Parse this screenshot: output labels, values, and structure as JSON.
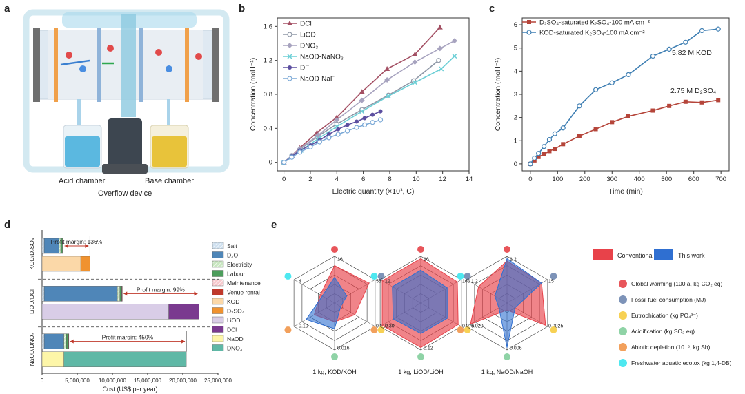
{
  "panel_labels": {
    "a": "a",
    "b": "b",
    "c": "c",
    "d": "d",
    "e": "e"
  },
  "panel_a": {
    "acid_label": "Acid chamber",
    "base_label": "Base chamber",
    "overflow_label": "Overflow device",
    "colors": {
      "acid_liquid": "#5bb8e0",
      "base_liquid": "#e8c33a",
      "membrane": "#f0a04a",
      "pipe": "#bfe3ef"
    }
  },
  "chart_data": [
    {
      "id": "b",
      "type": "line",
      "xlabel": "Electric quantity (×10³, C)",
      "ylabel": "Concentration (mol l⁻¹)",
      "xlim": [
        -0.5,
        14
      ],
      "ylim": [
        -0.1,
        1.7
      ],
      "xticks": [
        0,
        2,
        4,
        6,
        8,
        10,
        12,
        14
      ],
      "yticks": [
        0,
        0.4,
        0.8,
        1.2,
        1.6
      ],
      "ytick_labels": [
        "0",
        "0.4",
        "0.8",
        "1.2",
        "1.6"
      ],
      "legend_position": "top-left",
      "series": [
        {
          "name": "DCl",
          "color": "#a34f63",
          "marker": "triangle",
          "x": [
            0,
            0.6,
            1.2,
            2.5,
            4.0,
            5.9,
            7.8,
            9.9,
            11.8
          ],
          "y": [
            0,
            0.08,
            0.17,
            0.35,
            0.53,
            0.83,
            1.1,
            1.27,
            1.59
          ]
        },
        {
          "name": "LiOD",
          "color": "#8e97a6",
          "marker": "open-circle",
          "x": [
            0,
            0.6,
            1.2,
            2.5,
            4.0,
            5.9,
            7.9,
            9.8,
            11.7
          ],
          "y": [
            0,
            0.08,
            0.15,
            0.3,
            0.45,
            0.62,
            0.79,
            0.96,
            1.2
          ]
        },
        {
          "name": "DNO₃",
          "color": "#a7a3bf",
          "marker": "diamond",
          "x": [
            0,
            0.6,
            1.2,
            2.6,
            4.0,
            5.9,
            7.8,
            9.9,
            11.8,
            12.9
          ],
          "y": [
            0,
            0.08,
            0.16,
            0.32,
            0.5,
            0.73,
            0.97,
            1.18,
            1.34,
            1.43
          ]
        },
        {
          "name": "NaOD-NaNO₃",
          "color": "#6ccfd6",
          "marker": "x",
          "x": [
            0,
            0.6,
            1.3,
            2.6,
            4.0,
            5.9,
            7.9,
            9.9,
            11.9,
            12.9
          ],
          "y": [
            0,
            0.07,
            0.14,
            0.28,
            0.42,
            0.6,
            0.78,
            0.94,
            1.1,
            1.25
          ]
        },
        {
          "name": "DF",
          "color": "#5c4fa0",
          "marker": "filled-circle",
          "x": [
            0,
            0.6,
            1.2,
            2.0,
            2.7,
            3.4,
            4.1,
            4.8,
            5.5,
            6.1,
            6.7,
            7.3
          ],
          "y": [
            0,
            0.07,
            0.14,
            0.2,
            0.26,
            0.33,
            0.39,
            0.44,
            0.48,
            0.52,
            0.56,
            0.6
          ]
        },
        {
          "name": "NaOD-NaF",
          "color": "#7aa8d6",
          "marker": "open-circle",
          "x": [
            0,
            0.6,
            1.2,
            2.0,
            2.7,
            3.4,
            4.1,
            4.8,
            5.5,
            6.1,
            6.7,
            7.3
          ],
          "y": [
            0,
            0.06,
            0.12,
            0.18,
            0.24,
            0.29,
            0.33,
            0.37,
            0.41,
            0.44,
            0.47,
            0.5
          ]
        }
      ]
    },
    {
      "id": "c",
      "type": "line",
      "xlabel": "Time (min)",
      "ylabel": "Concentration (mol l⁻¹)",
      "xlim": [
        -30,
        730
      ],
      "ylim": [
        -0.3,
        6.3
      ],
      "xticks": [
        0,
        100,
        200,
        300,
        400,
        500,
        600,
        700
      ],
      "yticks": [
        0,
        1,
        2,
        3,
        4,
        5,
        6
      ],
      "legend_position": "top-left",
      "annotations": [
        "5.82 M KOD",
        "2.75 M D₂SO₄"
      ],
      "series": [
        {
          "name": "D₂SO₄-saturated K₂SO₄-100 mA cm⁻²",
          "color": "#b5453a",
          "marker": "square",
          "x": [
            0,
            15,
            30,
            50,
            70,
            90,
            120,
            180,
            240,
            300,
            360,
            450,
            510,
            570,
            630,
            690
          ],
          "y": [
            0,
            0.15,
            0.3,
            0.42,
            0.55,
            0.65,
            0.85,
            1.2,
            1.5,
            1.8,
            2.05,
            2.3,
            2.5,
            2.68,
            2.65,
            2.75
          ]
        },
        {
          "name": "KOD-saturated K₂SO₄-100 mA cm⁻²",
          "color": "#3f7fb3",
          "marker": "open-circle",
          "x": [
            0,
            15,
            30,
            50,
            70,
            90,
            120,
            180,
            240,
            300,
            360,
            450,
            510,
            570,
            630,
            690
          ],
          "y": [
            0,
            0.25,
            0.45,
            0.75,
            1.05,
            1.3,
            1.55,
            2.5,
            3.2,
            3.5,
            3.85,
            4.65,
            4.95,
            5.25,
            5.75,
            5.82
          ]
        }
      ]
    },
    {
      "id": "d",
      "type": "bar",
      "orientation": "horizontal",
      "stacked": true,
      "xlabel": "Cost (US$ per year)",
      "xlim": [
        0,
        25000000
      ],
      "xticks": [
        0,
        5000000,
        10000000,
        15000000,
        20000000,
        25000000
      ],
      "xtick_labels": [
        "0",
        "5,000,000",
        "10,000,000",
        "15,000,000",
        "20,000,000",
        "25,000,000"
      ],
      "groups": [
        {
          "label": "KOD/D₂SO₄",
          "profit_margin": "Profit margin: 136%",
          "cost_bar": {
            "Salt": 300000,
            "D₂O": 2100000,
            "Electricity": 250000,
            "Labour": 250000,
            "Maintenance": 50000,
            "Venue rental": 50000
          },
          "revenue_bar": {
            "KOD": 5500000,
            "D₂SO₄": 1300000
          }
        },
        {
          "label": "LiOD/DCl",
          "profit_margin": "Profit margin: 99%",
          "cost_bar": {
            "Salt": 300000,
            "D₂O": 10400000,
            "Electricity": 350000,
            "Labour": 250000,
            "Maintenance": 50000,
            "Venue rental": 50000
          },
          "revenue_bar": {
            "LiOD": 18000000,
            "DCl": 4300000
          }
        },
        {
          "label": "NaOD/DNO₃",
          "profit_margin": "Profit margin: 450%",
          "cost_bar": {
            "Salt": 300000,
            "D₂O": 2800000,
            "Electricity": 350000,
            "Labour": 250000,
            "Maintenance": 50000,
            "Venue rental": 50000
          },
          "revenue_bar": {
            "NaOD": 3100000,
            "DNO₃": 17400000
          }
        }
      ],
      "legend": [
        {
          "name": "Salt",
          "color": "#cfe0ef",
          "hatch": true
        },
        {
          "name": "D₂O",
          "color": "#4f86b8",
          "hatch": false
        },
        {
          "name": "Electricity",
          "color": "#c8e6c0",
          "hatch": true
        },
        {
          "name": "Labour",
          "color": "#4c9e5c",
          "hatch": false
        },
        {
          "name": "Maintenance",
          "color": "#f7c9cd",
          "hatch": true
        },
        {
          "name": "Venue rental",
          "color": "#c0392b",
          "hatch": false
        },
        {
          "name": "KOD",
          "color": "#fbd8a8",
          "hatch": false
        },
        {
          "name": "D₂SO₄",
          "color": "#f0922f",
          "hatch": false
        },
        {
          "name": "LiOD",
          "color": "#d9cde7",
          "hatch": false
        },
        {
          "name": "DCl",
          "color": "#7a3a8f",
          "hatch": false
        },
        {
          "name": "NaOD",
          "color": "#fdf6a8",
          "hatch": false
        },
        {
          "name": "DNO₃",
          "color": "#5fb8a6",
          "hatch": false
        }
      ]
    },
    {
      "id": "e",
      "type": "radar",
      "legend_series": [
        {
          "name": "Conventional",
          "color": "#e8424a"
        },
        {
          "name": "This work",
          "color": "#2f6fd1"
        }
      ],
      "categories": [
        {
          "name": "Global warming (100 a, kg CO₂ eq)",
          "color": "#e8555a"
        },
        {
          "name": "Fossil fuel consumption (MJ)",
          "color": "#7d93b8"
        },
        {
          "name": "Eutrophication (kg PO₄³⁻)",
          "color": "#f7d154"
        },
        {
          "name": "Acidification (kg SO₂ eq)",
          "color": "#8fd3a6"
        },
        {
          "name": "Abiotic depletion (10⁻⁵, kg Sb)",
          "color": "#f2a05c"
        },
        {
          "name": "Freshwater aquatic ecotox (kg 1,4-DB)",
          "color": "#4ee8f0"
        }
      ],
      "radars": [
        {
          "label": "1 kg, KOD/KOH",
          "max_labels": [
            "16",
            "55",
            "0.012",
            "0.016",
            "0.10",
            "4"
          ],
          "conventional": [
            0.8,
            0.85,
            0.5,
            0.4,
            0.5,
            0.35
          ],
          "this_work": [
            0.55,
            0.3,
            0.15,
            0.55,
            0.7,
            0.3
          ]
        },
        {
          "label": "1 kg, LiOD/LiOH",
          "max_labels": [
            "16",
            "160",
            "0.075",
            "0.12",
            "0.30",
            "12"
          ],
          "conventional": [
            0.95,
            0.9,
            0.92,
            0.95,
            0.95,
            0.95
          ],
          "this_work": [
            0.7,
            0.65,
            0.65,
            0.65,
            0.68,
            0.7
          ]
        },
        {
          "label": "1 kg, NaOD/NaOH",
          "max_labels": [
            "1.2",
            "15",
            "0.0025",
            "0.006",
            "0.020",
            "1.2"
          ],
          "conventional": [
            0.9,
            0.85,
            0.95,
            0.15,
            0.9,
            0.7
          ],
          "this_work": [
            0.95,
            0.85,
            0.2,
            0.95,
            0.2,
            0.3
          ]
        }
      ]
    }
  ]
}
